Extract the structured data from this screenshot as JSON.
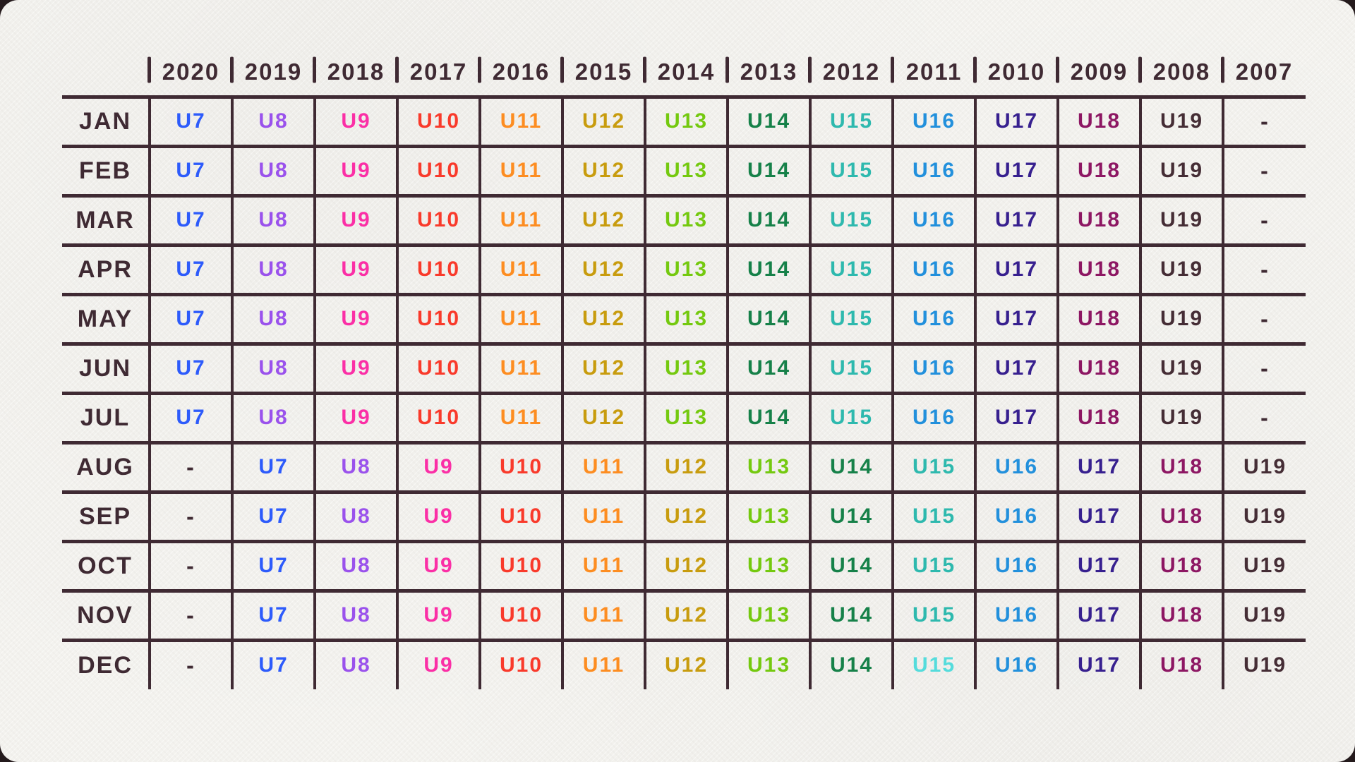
{
  "page": {
    "backdrop_color": "#241a1c",
    "paper_color": "#f3f2ee"
  },
  "chart_data": {
    "type": "table",
    "description": "Age-group matrix by birth year and birth month",
    "grid_color": "#3f2a33",
    "label_color": "#3f2a33",
    "empty_symbol": "-",
    "columns": [
      "2020",
      "2019",
      "2018",
      "2017",
      "2016",
      "2015",
      "2014",
      "2013",
      "2012",
      "2011",
      "2010",
      "2009",
      "2008",
      "2007"
    ],
    "rows": [
      {
        "label": "JAN",
        "values": [
          "U7",
          "U8",
          "U9",
          "U10",
          "U11",
          "U12",
          "U13",
          "U14",
          "U15",
          "U16",
          "U17",
          "U18",
          "U19",
          "-"
        ]
      },
      {
        "label": "FEB",
        "values": [
          "U7",
          "U8",
          "U9",
          "U10",
          "U11",
          "U12",
          "U13",
          "U14",
          "U15",
          "U16",
          "U17",
          "U18",
          "U19",
          "-"
        ]
      },
      {
        "label": "MAR",
        "values": [
          "U7",
          "U8",
          "U9",
          "U10",
          "U11",
          "U12",
          "U13",
          "U14",
          "U15",
          "U16",
          "U17",
          "U18",
          "U19",
          "-"
        ]
      },
      {
        "label": "APR",
        "values": [
          "U7",
          "U8",
          "U9",
          "U10",
          "U11",
          "U12",
          "U13",
          "U14",
          "U15",
          "U16",
          "U17",
          "U18",
          "U19",
          "-"
        ]
      },
      {
        "label": "MAY",
        "values": [
          "U7",
          "U8",
          "U9",
          "U10",
          "U11",
          "U12",
          "U13",
          "U14",
          "U15",
          "U16",
          "U17",
          "U18",
          "U19",
          "-"
        ]
      },
      {
        "label": "JUN",
        "values": [
          "U7",
          "U8",
          "U9",
          "U10",
          "U11",
          "U12",
          "U13",
          "U14",
          "U15",
          "U16",
          "U17",
          "U18",
          "U19",
          "-"
        ]
      },
      {
        "label": "JUL",
        "values": [
          "U7",
          "U8",
          "U9",
          "U10",
          "U11",
          "U12",
          "U13",
          "U14",
          "U15",
          "U16",
          "U17",
          "U18",
          "U19",
          "-"
        ]
      },
      {
        "label": "AUG",
        "values": [
          "-",
          "U7",
          "U8",
          "U9",
          "U10",
          "U11",
          "U12",
          "U13",
          "U14",
          "U15",
          "U16",
          "U17",
          "U18",
          "U19"
        ]
      },
      {
        "label": "SEP",
        "values": [
          "-",
          "U7",
          "U8",
          "U9",
          "U10",
          "U11",
          "U12",
          "U13",
          "U14",
          "U15",
          "U16",
          "U17",
          "U18",
          "U19"
        ]
      },
      {
        "label": "OCT",
        "values": [
          "-",
          "U7",
          "U8",
          "U9",
          "U10",
          "U11",
          "U12",
          "U13",
          "U14",
          "U15",
          "U16",
          "U17",
          "U18",
          "U19"
        ]
      },
      {
        "label": "NOV",
        "values": [
          "-",
          "U7",
          "U8",
          "U9",
          "U10",
          "U11",
          "U12",
          "U13",
          "U14",
          "U15",
          "U16",
          "U17",
          "U18",
          "U19"
        ]
      },
      {
        "label": "DEC",
        "values": [
          "-",
          "U7",
          "U8",
          "U9",
          "U10",
          "U11",
          "U12",
          "U13",
          "U14",
          "U15",
          "U16",
          "U17",
          "U18",
          "U19"
        ]
      }
    ],
    "age_group_colors": {
      "U7": "#2d5bfb",
      "U8": "#9a52ec",
      "U9": "#fb2fa6",
      "U10": "#f93a2b",
      "U11": "#fd8d21",
      "U12": "#c89c0e",
      "U13": "#74c90f",
      "U14": "#168149",
      "U15": "#2eb9ae",
      "U16": "#2290dc",
      "U17": "#37208f",
      "U18": "#8d1763",
      "U19": "#452d35",
      "-": "#3f2a33"
    },
    "cell_overrides": [
      {
        "row": "DEC",
        "column": "2011",
        "color": "#55dcdc"
      }
    ]
  }
}
